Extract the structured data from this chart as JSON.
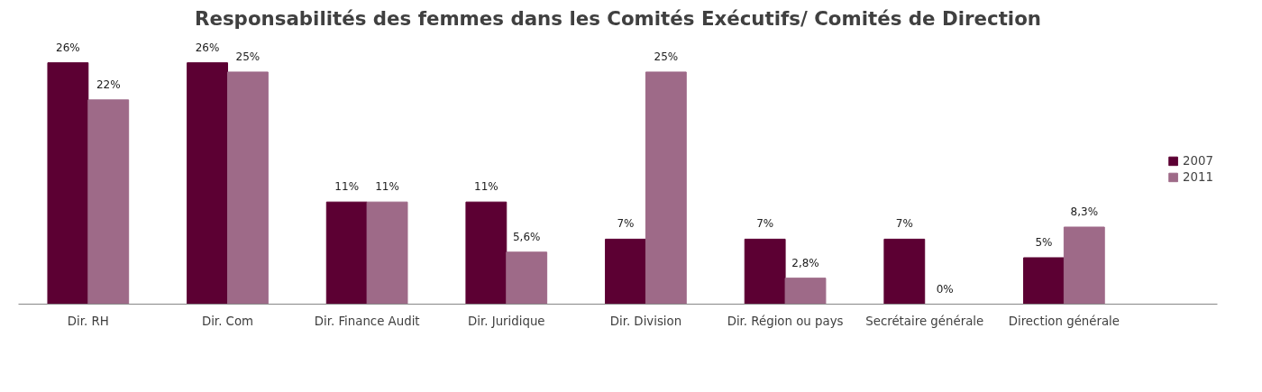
{
  "chart_data": {
    "type": "bar",
    "title": "Responsabilités des femmes dans les Comités Exécutifs/ Comités de Direction",
    "categories": [
      "Dir. RH",
      "Dir. Com",
      "Dir. Finance Audit",
      "Dir. Juridique",
      "Dir. Division",
      "Dir. Région ou pays",
      "Secrétaire générale",
      "Direction générale"
    ],
    "series": [
      {
        "name": "2007",
        "color": "#5c0033",
        "values": [
          26,
          26,
          11,
          11,
          7,
          7,
          7,
          5
        ],
        "value_labels": [
          "26%",
          "26%",
          "11%",
          "11%",
          "7%",
          "7%",
          "7%",
          "5%"
        ]
      },
      {
        "name": "2011",
        "color": "#9e6a88",
        "values": [
          22,
          25,
          11,
          5.6,
          25,
          2.8,
          0,
          8.3
        ],
        "value_labels": [
          "22%",
          "25%",
          "11%",
          "5,6%",
          "25%",
          "2,8%",
          "0%",
          "8,3%"
        ]
      }
    ],
    "grid": false,
    "legend": "right"
  }
}
